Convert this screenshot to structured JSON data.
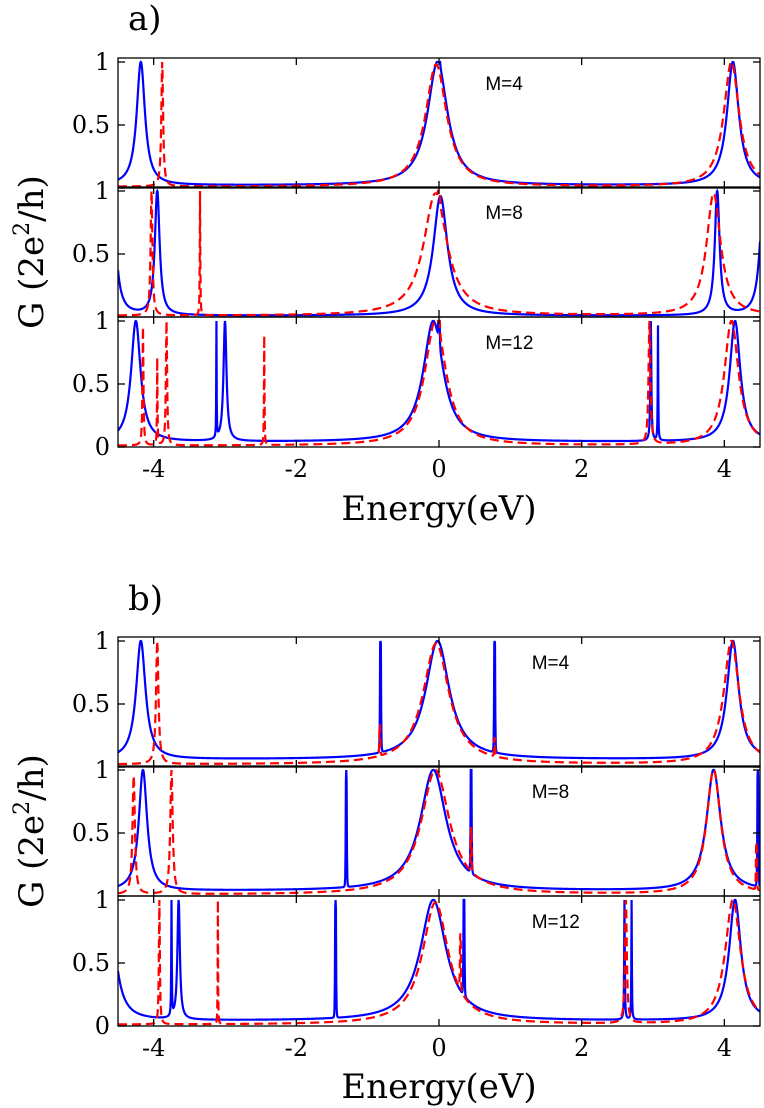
{
  "chart_data": {
    "type": "line",
    "panels": [
      {
        "label": "a)",
        "xlabel": "Energy(eV)",
        "ylabel_parts": [
          "G (2e",
          "2",
          "/h)"
        ],
        "xlim": [
          -4.5,
          4.5
        ],
        "ylim": [
          0,
          1
        ],
        "xticks": [
          -4,
          -2,
          0,
          2,
          4
        ],
        "xtick_labels": [
          "-4",
          "-2",
          "0",
          "2",
          "4"
        ],
        "ytick_labels": [
          "0",
          "0.5",
          "1"
        ],
        "subplots": [
          {
            "label": "M=4",
            "series": [
              {
                "name": "solid",
                "color": "#0000ff",
                "style": "solid",
                "peaks": [
                  {
                    "x": -4.18,
                    "h": 1.0,
                    "w": 0.07
                  },
                  {
                    "x": -0.02,
                    "h": 1.0,
                    "w": 0.17
                  },
                  {
                    "x": 4.12,
                    "h": 1.0,
                    "w": 0.1
                  }
                ],
                "spikes": [
                  {
                    "x": 0.0,
                    "h": 1.0
                  }
                ],
                "base": 0.02
              },
              {
                "name": "dashed",
                "color": "#ff0000",
                "style": "dashed",
                "peaks": [
                  {
                    "x": -3.88,
                    "h": 1.0,
                    "w": 0.015
                  },
                  {
                    "x": -0.04,
                    "h": 0.98,
                    "w": 0.18
                  },
                  {
                    "x": 4.1,
                    "h": 1.0,
                    "w": 0.13
                  }
                ],
                "spikes": [],
                "base": 0.01
              }
            ]
          },
          {
            "label": "M=8",
            "series": [
              {
                "name": "solid",
                "color": "#0000ff",
                "style": "solid",
                "peaks": [
                  {
                    "x": -3.95,
                    "h": 1.0,
                    "w": 0.04
                  },
                  {
                    "x": 0.02,
                    "h": 0.96,
                    "w": 0.12
                  },
                  {
                    "x": 3.9,
                    "h": 1.0,
                    "w": 0.04
                  },
                  {
                    "x": 4.55,
                    "h": 1.0,
                    "w": 0.06
                  },
                  {
                    "x": -4.58,
                    "h": 1.0,
                    "w": 0.06
                  }
                ],
                "spikes": [],
                "base": 0.01
              },
              {
                "name": "dashed",
                "color": "#ff0000",
                "style": "dashed",
                "peaks": [
                  {
                    "x": -4.03,
                    "h": 1.0,
                    "w": 0.015
                  },
                  {
                    "x": -3.35,
                    "h": 1.0,
                    "w": 0.004
                  },
                  {
                    "x": -0.05,
                    "h": 0.98,
                    "w": 0.2
                  },
                  {
                    "x": 3.85,
                    "h": 0.98,
                    "w": 0.12
                  }
                ],
                "spikes": [
                  {
                    "x": 0.0,
                    "h": 1.0
                  }
                ],
                "base": 0.01
              }
            ]
          },
          {
            "label": "M=12",
            "series": [
              {
                "name": "solid",
                "color": "#0000ff",
                "style": "solid",
                "peaks": [
                  {
                    "x": -4.25,
                    "h": 1.0,
                    "w": 0.08
                  },
                  {
                    "x": -3.12,
                    "h": 0.98,
                    "w": 0.003
                  },
                  {
                    "x": -3.0,
                    "h": 1.0,
                    "w": 0.025
                  },
                  {
                    "x": -0.08,
                    "h": 1.0,
                    "w": 0.17
                  },
                  {
                    "x": 2.97,
                    "h": 1.0,
                    "w": 0.008
                  },
                  {
                    "x": 3.07,
                    "h": 0.95,
                    "w": 0.004
                  },
                  {
                    "x": 4.15,
                    "h": 1.0,
                    "w": 0.09
                  }
                ],
                "spikes": [
                  {
                    "x": 0.0,
                    "h": 0.78
                  }
                ],
                "base": 0.04
              },
              {
                "name": "dashed",
                "color": "#ff0000",
                "style": "dashed",
                "peaks": [
                  {
                    "x": -4.15,
                    "h": 0.95,
                    "w": 0.008
                  },
                  {
                    "x": -3.95,
                    "h": 0.7,
                    "w": 0.004
                  },
                  {
                    "x": -3.82,
                    "h": 1.0,
                    "w": 0.01
                  },
                  {
                    "x": -2.45,
                    "h": 0.88,
                    "w": 0.004
                  },
                  {
                    "x": -0.05,
                    "h": 1.0,
                    "w": 0.18
                  },
                  {
                    "x": 2.95,
                    "h": 1.0,
                    "w": 0.015
                  },
                  {
                    "x": 4.1,
                    "h": 1.0,
                    "w": 0.12
                  }
                ],
                "spikes": [
                  {
                    "x": 0.0,
                    "h": 1.0
                  }
                ],
                "base": 0.01
              }
            ]
          }
        ]
      },
      {
        "label": "b)",
        "xlabel": "Energy(eV)",
        "ylabel_parts": [
          "G (2e",
          "2",
          "/h)"
        ],
        "xlim": [
          -4.5,
          4.5
        ],
        "ylim": [
          0,
          1
        ],
        "xticks": [
          -4,
          -2,
          0,
          2,
          4
        ],
        "xtick_labels": [
          "-4",
          "-2",
          "0",
          "2",
          "4"
        ],
        "ytick_labels": [
          "0",
          "0.5",
          "1"
        ],
        "subplots": [
          {
            "label": "M=4",
            "series": [
              {
                "name": "solid",
                "color": "#0000ff",
                "style": "solid",
                "peaks": [
                  {
                    "x": -4.18,
                    "h": 1.0,
                    "w": 0.08
                  },
                  {
                    "x": -0.02,
                    "h": 1.0,
                    "w": 0.2
                  },
                  {
                    "x": 4.12,
                    "h": 1.0,
                    "w": 0.1
                  }
                ],
                "spikes": [
                  {
                    "x": -0.82,
                    "h": 1.0
                  },
                  {
                    "x": 0.78,
                    "h": 1.0
                  }
                ],
                "base": 0.06
              },
              {
                "name": "dashed",
                "color": "#ff0000",
                "style": "dashed",
                "peaks": [
                  {
                    "x": -3.95,
                    "h": 1.0,
                    "w": 0.02
                  },
                  {
                    "x": -0.04,
                    "h": 0.98,
                    "w": 0.22
                  },
                  {
                    "x": 4.1,
                    "h": 1.0,
                    "w": 0.13
                  }
                ],
                "spikes": [
                  {
                    "x": -0.83,
                    "h": 0.25
                  },
                  {
                    "x": 0.78,
                    "h": 0.15
                  }
                ],
                "base": 0.02
              }
            ]
          },
          {
            "label": "M=8",
            "series": [
              {
                "name": "solid",
                "color": "#0000ff",
                "style": "solid",
                "peaks": [
                  {
                    "x": -4.15,
                    "h": 1.0,
                    "w": 0.07
                  },
                  {
                    "x": -0.08,
                    "h": 1.0,
                    "w": 0.22
                  },
                  {
                    "x": 3.85,
                    "h": 1.0,
                    "w": 0.12
                  }
                ],
                "spikes": [
                  {
                    "x": -1.3,
                    "h": 0.97
                  },
                  {
                    "x": 0.45,
                    "h": 1.0
                  },
                  {
                    "x": 4.47,
                    "h": 1.0
                  }
                ],
                "base": 0.04
              },
              {
                "name": "dashed",
                "color": "#ff0000",
                "style": "dashed",
                "peaks": [
                  {
                    "x": -4.28,
                    "h": 0.95,
                    "w": 0.02
                  },
                  {
                    "x": -3.75,
                    "h": 1.0,
                    "w": 0.02
                  },
                  {
                    "x": -0.05,
                    "h": 1.0,
                    "w": 0.24
                  },
                  {
                    "x": 3.85,
                    "h": 1.0,
                    "w": 0.12
                  }
                ],
                "spikes": [
                  {
                    "x": 0.45,
                    "h": 0.35
                  },
                  {
                    "x": 4.45,
                    "h": 0.38
                  }
                ],
                "base": 0.01
              }
            ]
          },
          {
            "label": "M=12",
            "series": [
              {
                "name": "solid",
                "color": "#0000ff",
                "style": "solid",
                "peaks": [
                  {
                    "x": -4.62,
                    "h": 1.0,
                    "w": 0.1
                  },
                  {
                    "x": -3.75,
                    "h": 1.0,
                    "w": 0.004
                  },
                  {
                    "x": -3.65,
                    "h": 1.0,
                    "w": 0.02
                  },
                  {
                    "x": -0.08,
                    "h": 1.0,
                    "w": 0.22
                  },
                  {
                    "x": 2.6,
                    "h": 1.0,
                    "w": 0.005
                  },
                  {
                    "x": 2.7,
                    "h": 1.0,
                    "w": 0.004
                  },
                  {
                    "x": 4.15,
                    "h": 1.0,
                    "w": 0.1
                  }
                ],
                "spikes": [
                  {
                    "x": -1.45,
                    "h": 1.0
                  },
                  {
                    "x": 0.35,
                    "h": 1.0
                  }
                ],
                "base": 0.04
              },
              {
                "name": "dashed",
                "color": "#ff0000",
                "style": "dashed",
                "peaks": [
                  {
                    "x": -3.92,
                    "h": 1.0,
                    "w": 0.008
                  },
                  {
                    "x": -3.1,
                    "h": 1.0,
                    "w": 0.003
                  },
                  {
                    "x": -0.05,
                    "h": 0.98,
                    "w": 0.22
                  },
                  {
                    "x": 2.62,
                    "h": 1.0,
                    "w": 0.015
                  },
                  {
                    "x": 4.12,
                    "h": 1.0,
                    "w": 0.13
                  }
                ],
                "spikes": [
                  {
                    "x": 0.3,
                    "h": 0.45
                  }
                ],
                "base": 0.01
              }
            ]
          }
        ]
      }
    ]
  }
}
